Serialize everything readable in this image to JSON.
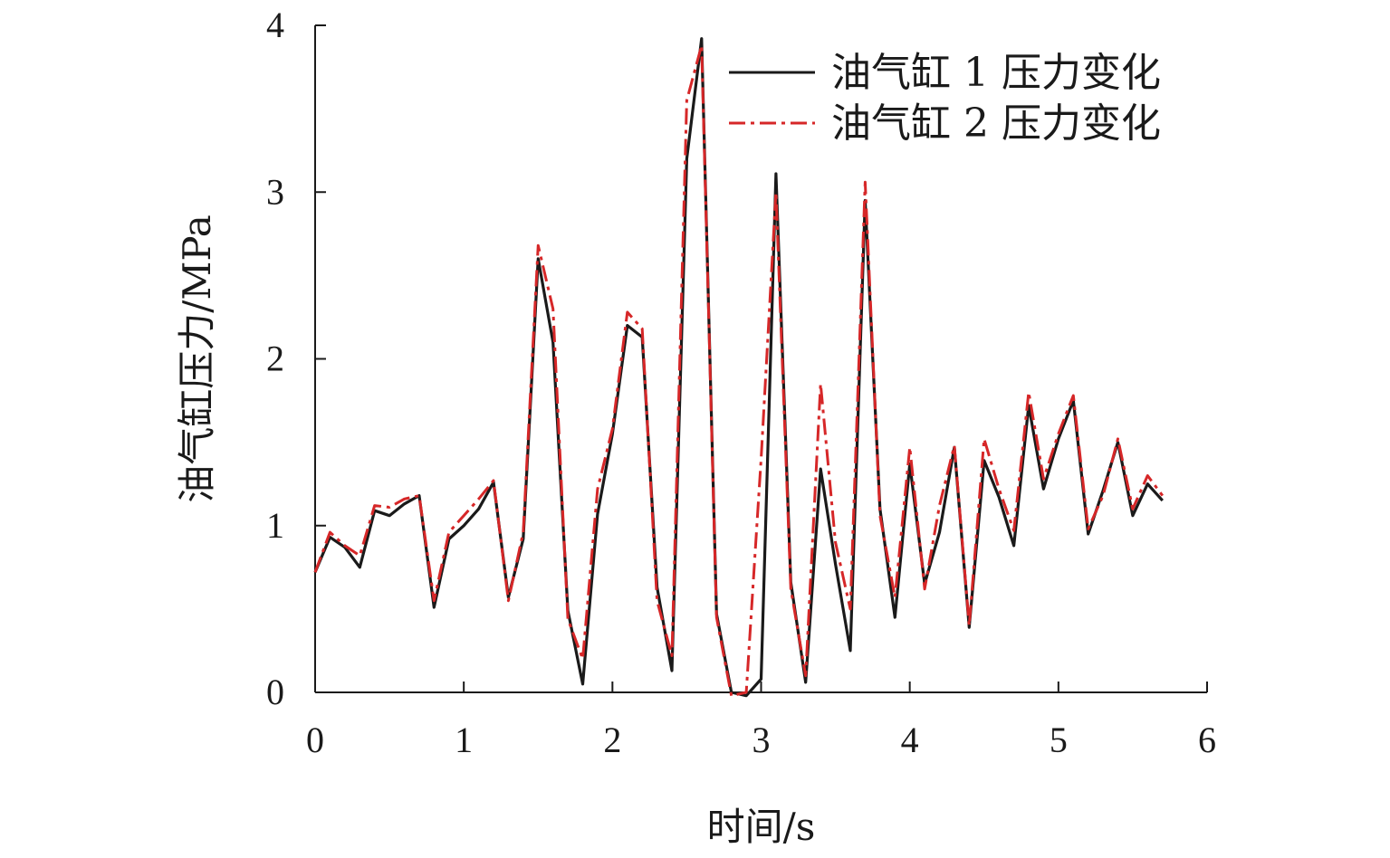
{
  "chart_data": {
    "type": "line",
    "title": "",
    "xlabel": "时间/s",
    "ylabel": "油气缸压力/MPa",
    "xlim": [
      0,
      6
    ],
    "ylim": [
      0,
      4
    ],
    "xticks": [
      0,
      1,
      2,
      3,
      4,
      5,
      6
    ],
    "yticks": [
      0,
      1,
      2,
      3,
      4
    ],
    "grid": false,
    "legend_position": "top-right",
    "series": [
      {
        "name": "油气缸 1 压力变化",
        "color": "#1a1a1a",
        "style": "solid",
        "x": [
          0,
          0.1,
          0.2,
          0.3,
          0.4,
          0.5,
          0.6,
          0.7,
          0.8,
          0.9,
          1.0,
          1.1,
          1.2,
          1.3,
          1.4,
          1.5,
          1.6,
          1.7,
          1.8,
          1.9,
          2.0,
          2.1,
          2.2,
          2.3,
          2.4,
          2.5,
          2.6,
          2.7,
          2.8,
          2.9,
          3.0,
          3.1,
          3.2,
          3.3,
          3.4,
          3.5,
          3.6,
          3.7,
          3.8,
          3.9,
          4.0,
          4.1,
          4.2,
          4.3,
          4.4,
          4.5,
          4.6,
          4.7,
          4.8,
          4.9,
          5.0,
          5.1,
          5.2,
          5.3,
          5.4,
          5.5,
          5.6,
          5.7
        ],
        "y": [
          0.72,
          0.93,
          0.87,
          0.75,
          1.09,
          1.06,
          1.13,
          1.18,
          0.51,
          0.92,
          1.0,
          1.1,
          1.26,
          0.57,
          0.92,
          2.6,
          2.1,
          0.49,
          0.05,
          1.07,
          1.55,
          2.2,
          2.13,
          0.63,
          0.13,
          3.2,
          3.92,
          0.47,
          0.0,
          -0.02,
          0.08,
          3.11,
          0.66,
          0.06,
          1.34,
          0.77,
          0.25,
          2.95,
          1.1,
          0.45,
          1.37,
          0.65,
          0.96,
          1.47,
          0.39,
          1.39,
          1.17,
          0.88,
          1.72,
          1.22,
          1.52,
          1.75,
          0.95,
          1.21,
          1.5,
          1.06,
          1.25,
          1.15
        ]
      },
      {
        "name": "油气缸 2 压力变化",
        "color": "#d62728",
        "style": "dash-dot",
        "x": [
          0,
          0.1,
          0.2,
          0.3,
          0.4,
          0.5,
          0.6,
          0.7,
          0.8,
          0.9,
          1.0,
          1.1,
          1.2,
          1.3,
          1.4,
          1.5,
          1.6,
          1.7,
          1.8,
          1.9,
          2.0,
          2.1,
          2.2,
          2.3,
          2.4,
          2.5,
          2.6,
          2.7,
          2.8,
          2.9,
          3.0,
          3.1,
          3.2,
          3.3,
          3.4,
          3.5,
          3.6,
          3.7,
          3.8,
          3.9,
          4.0,
          4.1,
          4.2,
          4.3,
          4.4,
          4.5,
          4.6,
          4.7,
          4.8,
          4.9,
          5.0,
          5.1,
          5.2,
          5.3,
          5.4,
          5.5,
          5.6,
          5.7
        ],
        "y": [
          0.72,
          0.96,
          0.88,
          0.82,
          1.12,
          1.11,
          1.16,
          1.18,
          0.55,
          0.96,
          1.06,
          1.16,
          1.27,
          0.55,
          0.96,
          2.68,
          2.3,
          0.44,
          0.2,
          1.22,
          1.58,
          2.28,
          2.18,
          0.55,
          0.22,
          3.55,
          3.88,
          0.45,
          -0.02,
          0.0,
          1.4,
          3.0,
          0.62,
          0.1,
          1.85,
          0.9,
          0.5,
          3.06,
          1.06,
          0.57,
          1.47,
          0.62,
          1.12,
          1.48,
          0.4,
          1.52,
          1.22,
          0.97,
          1.8,
          1.28,
          1.55,
          1.78,
          0.98,
          1.18,
          1.52,
          1.1,
          1.3,
          1.18
        ]
      }
    ]
  }
}
